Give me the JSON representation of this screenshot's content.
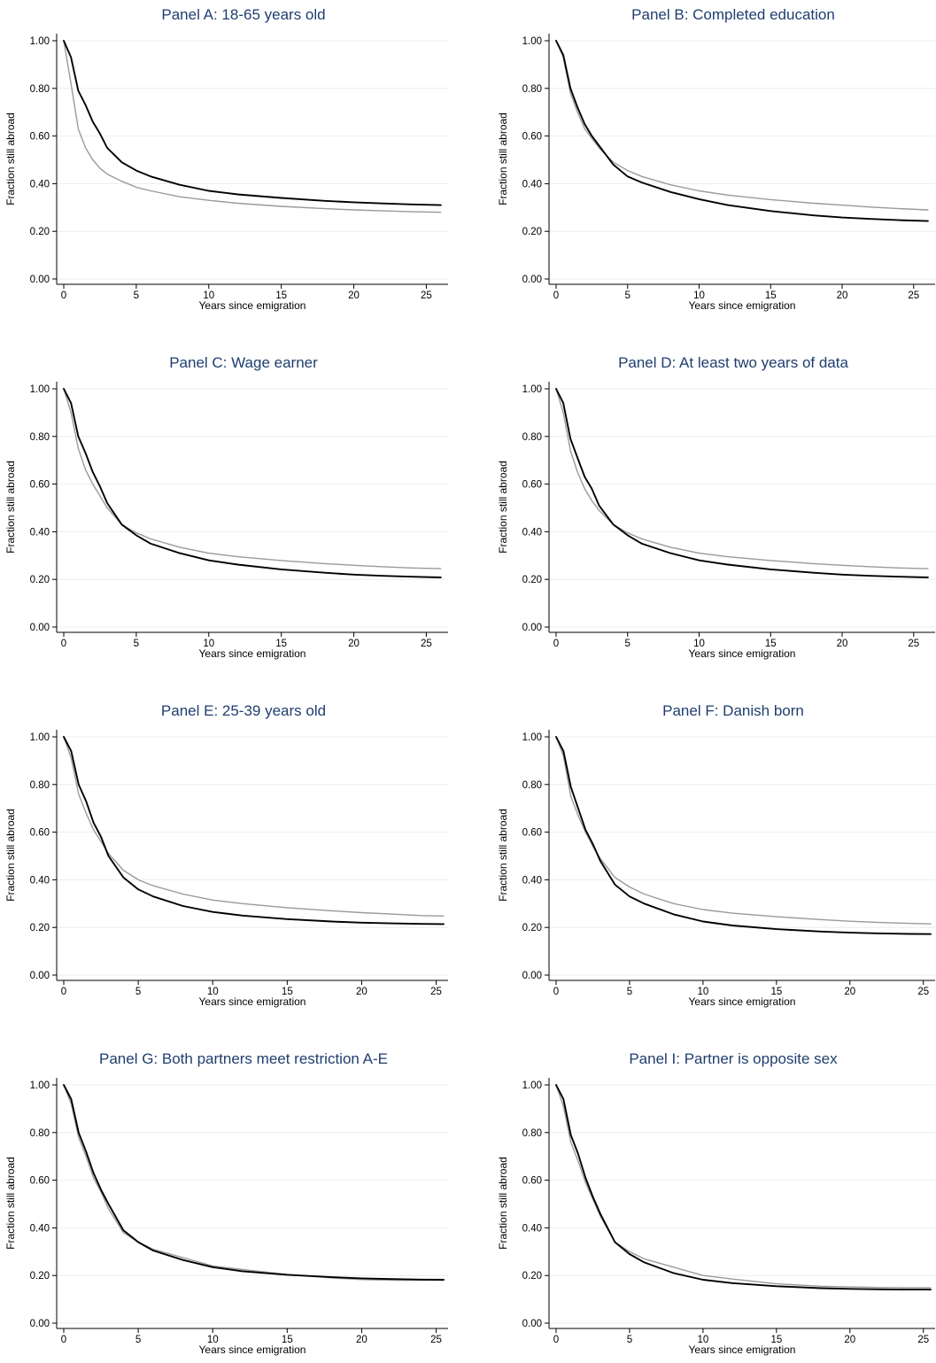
{
  "colors": {
    "title": "#1f3e6e",
    "grid": "#e9eef2",
    "axis": "#000000",
    "series_dark": "#000000",
    "series_light": "#9a9a9a"
  },
  "chart_data": [
    {
      "type": "line",
      "title": "Panel A: 18-65 years old",
      "xlabel": "Years since emigration",
      "ylabel": "Fraction still abroad",
      "xlim": [
        0,
        26.5
      ],
      "ylim": [
        0,
        1
      ],
      "xticks": [
        "0",
        "5",
        "10",
        "15",
        "20",
        "25"
      ],
      "yticks": [
        "0.00",
        "0.20",
        "0.40",
        "0.60",
        "0.80",
        "1.00"
      ],
      "grid": true,
      "legend": "none",
      "x": [
        0,
        0.5,
        1,
        1.5,
        2,
        2.5,
        3,
        4,
        5,
        6,
        8,
        10,
        12,
        15,
        18,
        20,
        22,
        24,
        26
      ],
      "series": [
        {
          "color": "black",
          "values": [
            1.0,
            0.93,
            0.79,
            0.73,
            0.66,
            0.61,
            0.55,
            0.49,
            0.455,
            0.43,
            0.395,
            0.37,
            0.355,
            0.34,
            0.328,
            0.322,
            0.317,
            0.313,
            0.31
          ]
        },
        {
          "color": "gray",
          "values": [
            1.0,
            0.82,
            0.63,
            0.55,
            0.5,
            0.465,
            0.44,
            0.41,
            0.385,
            0.37,
            0.345,
            0.33,
            0.318,
            0.305,
            0.295,
            0.29,
            0.286,
            0.282,
            0.28
          ]
        }
      ]
    },
    {
      "type": "line",
      "title": "Panel B: Completed education",
      "xlabel": "Years since emigration",
      "ylabel": "Fraction still abroad",
      "xlim": [
        0,
        26.5
      ],
      "ylim": [
        0,
        1
      ],
      "xticks": [
        "0",
        "5",
        "10",
        "15",
        "20",
        "25"
      ],
      "yticks": [
        "0.00",
        "0.20",
        "0.40",
        "0.60",
        "0.80",
        "1.00"
      ],
      "grid": true,
      "legend": "none",
      "x": [
        0,
        0.5,
        1,
        1.5,
        2,
        2.5,
        3,
        4,
        5,
        6,
        8,
        10,
        12,
        15,
        18,
        20,
        22,
        24,
        26
      ],
      "series": [
        {
          "color": "black",
          "values": [
            1.0,
            0.94,
            0.8,
            0.72,
            0.65,
            0.6,
            0.56,
            0.48,
            0.43,
            0.405,
            0.365,
            0.335,
            0.31,
            0.285,
            0.267,
            0.258,
            0.252,
            0.247,
            0.243
          ]
        },
        {
          "color": "gray",
          "values": [
            1.0,
            0.93,
            0.78,
            0.7,
            0.63,
            0.59,
            0.55,
            0.49,
            0.455,
            0.43,
            0.395,
            0.37,
            0.352,
            0.333,
            0.318,
            0.31,
            0.302,
            0.295,
            0.29
          ]
        }
      ]
    },
    {
      "type": "line",
      "title": "Panel C: Wage earner",
      "xlabel": "Years since emigration",
      "ylabel": "Fraction still abroad",
      "xlim": [
        0,
        26.5
      ],
      "ylim": [
        0,
        1
      ],
      "xticks": [
        "0",
        "5",
        "10",
        "15",
        "20",
        "25"
      ],
      "yticks": [
        "0.00",
        "0.20",
        "0.40",
        "0.60",
        "0.80",
        "1.00"
      ],
      "grid": true,
      "legend": "none",
      "x": [
        0,
        0.5,
        1,
        1.5,
        2,
        2.5,
        3,
        4,
        5,
        6,
        8,
        10,
        12,
        15,
        18,
        20,
        22,
        24,
        26
      ],
      "series": [
        {
          "color": "black",
          "values": [
            1.0,
            0.94,
            0.8,
            0.73,
            0.65,
            0.59,
            0.52,
            0.43,
            0.385,
            0.35,
            0.31,
            0.28,
            0.262,
            0.242,
            0.228,
            0.22,
            0.215,
            0.211,
            0.208
          ]
        },
        {
          "color": "gray",
          "values": [
            1.0,
            0.9,
            0.75,
            0.66,
            0.6,
            0.55,
            0.5,
            0.43,
            0.395,
            0.37,
            0.335,
            0.31,
            0.295,
            0.279,
            0.266,
            0.259,
            0.253,
            0.248,
            0.245
          ]
        }
      ]
    },
    {
      "type": "line",
      "title": "Panel D: At least two years of data",
      "xlabel": "Years since emigration",
      "ylabel": "Fraction still abroad",
      "xlim": [
        0,
        26.5
      ],
      "ylim": [
        0,
        1
      ],
      "xticks": [
        "0",
        "5",
        "10",
        "15",
        "20",
        "25"
      ],
      "yticks": [
        "0.00",
        "0.20",
        "0.40",
        "0.60",
        "0.80",
        "1.00"
      ],
      "grid": true,
      "legend": "none",
      "x": [
        0,
        0.5,
        1,
        1.5,
        2,
        2.5,
        3,
        4,
        5,
        6,
        8,
        10,
        12,
        15,
        18,
        20,
        22,
        24,
        26
      ],
      "series": [
        {
          "color": "black",
          "values": [
            1.0,
            0.94,
            0.79,
            0.71,
            0.63,
            0.58,
            0.51,
            0.43,
            0.385,
            0.35,
            0.31,
            0.28,
            0.262,
            0.242,
            0.228,
            0.22,
            0.215,
            0.211,
            0.208
          ]
        },
        {
          "color": "gray",
          "values": [
            1.0,
            0.9,
            0.74,
            0.65,
            0.58,
            0.53,
            0.49,
            0.43,
            0.395,
            0.37,
            0.335,
            0.31,
            0.295,
            0.279,
            0.266,
            0.259,
            0.253,
            0.248,
            0.245
          ]
        }
      ]
    },
    {
      "type": "line",
      "title": "Panel E: 25-39 years old",
      "xlabel": "Years since emigration",
      "ylabel": "Fraction still abroad",
      "xlim": [
        0,
        25.8
      ],
      "ylim": [
        0,
        1
      ],
      "xticks": [
        "0",
        "5",
        "10",
        "15",
        "20",
        "25"
      ],
      "yticks": [
        "0.00",
        "0.20",
        "0.40",
        "0.60",
        "0.80",
        "1.00"
      ],
      "grid": true,
      "legend": "none",
      "x": [
        0,
        0.5,
        1,
        1.5,
        2,
        2.5,
        3,
        4,
        5,
        6,
        8,
        10,
        12,
        15,
        18,
        20,
        22,
        24,
        25.5
      ],
      "series": [
        {
          "color": "black",
          "values": [
            1.0,
            0.94,
            0.8,
            0.73,
            0.64,
            0.58,
            0.5,
            0.41,
            0.36,
            0.33,
            0.29,
            0.265,
            0.25,
            0.235,
            0.225,
            0.22,
            0.217,
            0.215,
            0.214
          ]
        },
        {
          "color": "gray",
          "values": [
            1.0,
            0.91,
            0.76,
            0.68,
            0.61,
            0.56,
            0.51,
            0.44,
            0.4,
            0.375,
            0.34,
            0.315,
            0.3,
            0.283,
            0.27,
            0.262,
            0.256,
            0.25,
            0.248
          ]
        }
      ]
    },
    {
      "type": "line",
      "title": "Panel F: Danish born",
      "xlabel": "Years since emigration",
      "ylabel": "Fraction still abroad",
      "xlim": [
        0,
        25.8
      ],
      "ylim": [
        0,
        1
      ],
      "xticks": [
        "0",
        "5",
        "10",
        "15",
        "20",
        "25"
      ],
      "yticks": [
        "0.00",
        "0.20",
        "0.40",
        "0.60",
        "0.80",
        "1.00"
      ],
      "grid": true,
      "legend": "none",
      "x": [
        0,
        0.5,
        1,
        1.5,
        2,
        2.5,
        3,
        4,
        5,
        6,
        8,
        10,
        12,
        15,
        18,
        20,
        22,
        24,
        25.5
      ],
      "series": [
        {
          "color": "black",
          "values": [
            1.0,
            0.94,
            0.79,
            0.7,
            0.61,
            0.55,
            0.48,
            0.38,
            0.33,
            0.3,
            0.255,
            0.225,
            0.208,
            0.193,
            0.183,
            0.178,
            0.175,
            0.173,
            0.172
          ]
        },
        {
          "color": "gray",
          "values": [
            1.0,
            0.92,
            0.75,
            0.67,
            0.6,
            0.54,
            0.49,
            0.41,
            0.37,
            0.34,
            0.3,
            0.275,
            0.26,
            0.245,
            0.233,
            0.226,
            0.221,
            0.217,
            0.215
          ]
        }
      ]
    },
    {
      "type": "line",
      "title": "Panel G: Both partners meet restriction A-E",
      "xlabel": "Years since emigration",
      "ylabel": "Fraction still abroad",
      "xlim": [
        0,
        25.8
      ],
      "ylim": [
        0,
        1
      ],
      "xticks": [
        "0",
        "5",
        "10",
        "15",
        "20",
        "25"
      ],
      "yticks": [
        "0.00",
        "0.20",
        "0.40",
        "0.60",
        "0.80",
        "1.00"
      ],
      "grid": true,
      "legend": "none",
      "x": [
        0,
        0.5,
        1,
        1.5,
        2,
        2.5,
        3,
        4,
        5,
        6,
        8,
        10,
        12,
        15,
        18,
        20,
        22,
        24,
        25.5
      ],
      "series": [
        {
          "color": "black",
          "values": [
            1.0,
            0.94,
            0.8,
            0.72,
            0.63,
            0.56,
            0.5,
            0.39,
            0.34,
            0.305,
            0.265,
            0.235,
            0.218,
            0.203,
            0.193,
            0.188,
            0.185,
            0.183,
            0.182
          ]
        },
        {
          "color": "gray",
          "values": [
            1.0,
            0.92,
            0.78,
            0.7,
            0.61,
            0.55,
            0.48,
            0.38,
            0.34,
            0.31,
            0.275,
            0.24,
            0.225,
            0.205,
            0.19,
            0.183,
            0.18,
            0.18,
            0.18
          ]
        }
      ]
    },
    {
      "type": "line",
      "title": "Panel I: Partner is opposite sex",
      "xlabel": "Years since emigration",
      "ylabel": "Fraction still abroad",
      "xlim": [
        0,
        25.8
      ],
      "ylim": [
        0,
        1
      ],
      "xticks": [
        "0",
        "5",
        "10",
        "15",
        "20",
        "25"
      ],
      "yticks": [
        "0.00",
        "0.20",
        "0.40",
        "0.60",
        "0.80",
        "1.00"
      ],
      "grid": true,
      "legend": "none",
      "x": [
        0,
        0.5,
        1,
        1.5,
        2,
        2.5,
        3,
        4,
        5,
        6,
        8,
        10,
        12,
        15,
        18,
        20,
        22,
        24,
        25.5
      ],
      "series": [
        {
          "color": "black",
          "values": [
            1.0,
            0.94,
            0.79,
            0.71,
            0.61,
            0.53,
            0.46,
            0.34,
            0.29,
            0.255,
            0.21,
            0.182,
            0.168,
            0.155,
            0.147,
            0.144,
            0.142,
            0.141,
            0.141
          ]
        },
        {
          "color": "gray",
          "values": [
            1.0,
            0.91,
            0.76,
            0.68,
            0.59,
            0.52,
            0.45,
            0.34,
            0.3,
            0.27,
            0.235,
            0.2,
            0.185,
            0.165,
            0.155,
            0.152,
            0.15,
            0.149,
            0.149
          ]
        }
      ]
    }
  ]
}
